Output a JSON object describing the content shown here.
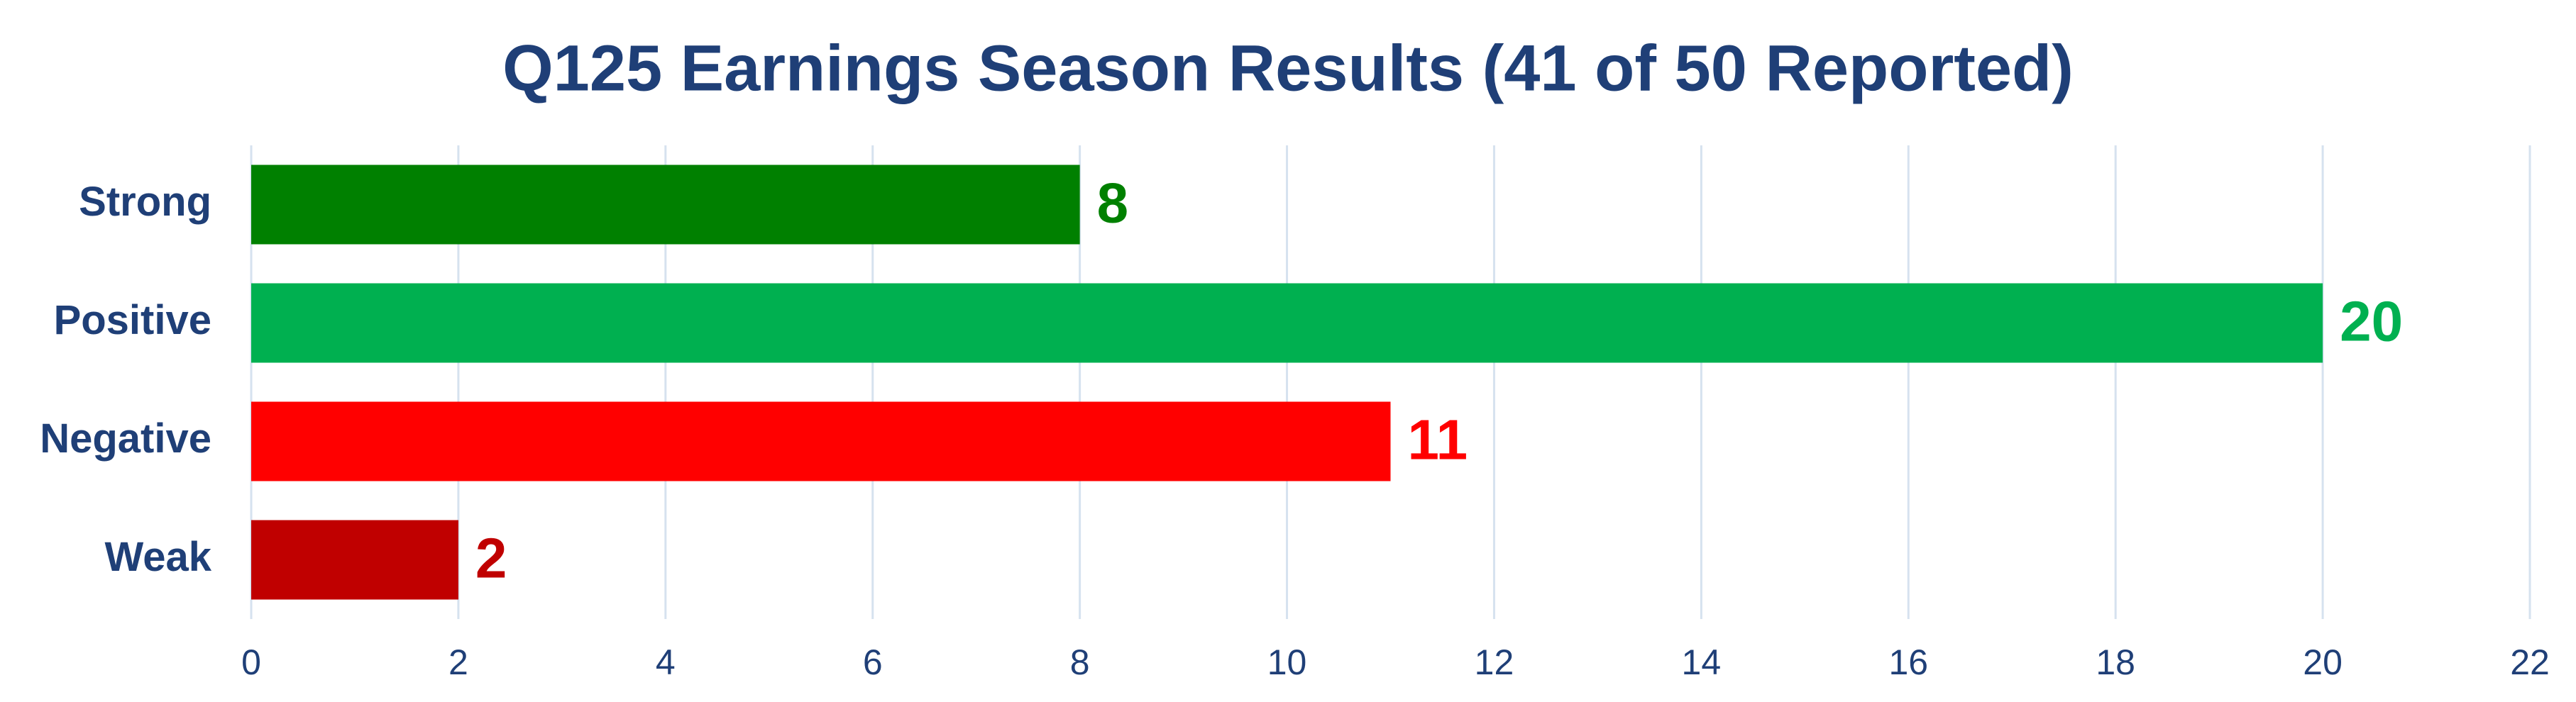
{
  "chart_data": {
    "type": "hbar",
    "title": "Q125 Earnings Season Results (41 of 50 Reported)",
    "categories": [
      "Strong",
      "Positive",
      "Negative",
      "Weak"
    ],
    "values": [
      8,
      20,
      11,
      2
    ],
    "colors": [
      "#008000",
      "#00b050",
      "#ff0000",
      "#c00000"
    ],
    "xlim": [
      0,
      22
    ],
    "xticks": [
      0,
      2,
      4,
      6,
      8,
      10,
      12,
      14,
      16,
      18,
      20,
      22
    ],
    "grid": true
  }
}
